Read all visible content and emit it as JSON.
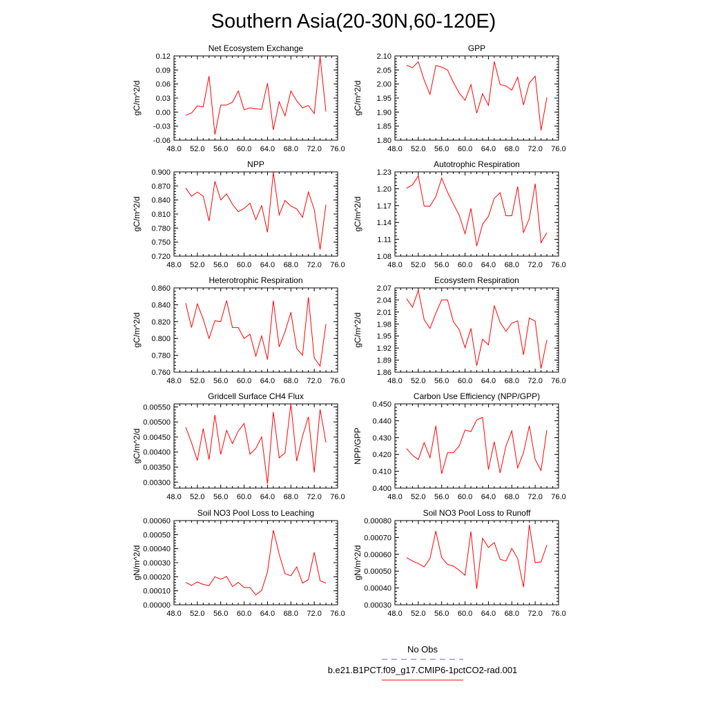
{
  "figure": {
    "title": "Southern Asia(20-30N,60-120E)",
    "legend": {
      "placement": "bottom-center",
      "entries": [
        {
          "label": "No Obs",
          "color": "#6666cc",
          "style": "dashed"
        },
        {
          "label": "b.e21.B1PCT.f09_g17.CMIP6-1pctCO2-rad.001",
          "color": "#ff0000",
          "style": "solid"
        }
      ]
    }
  },
  "chart_data": [
    {
      "type": "line",
      "title": "Net Ecosystem Exchange",
      "ylabel": "gC/m^2/d",
      "xlim": [
        48,
        76
      ],
      "xticks": [
        "48.0",
        "52.0",
        "56.0",
        "60.0",
        "64.0",
        "68.0",
        "72.0",
        "76.0"
      ],
      "ylim": [
        -0.06,
        0.12
      ],
      "yticks": [
        "-0.06",
        "-0.03",
        "0.00",
        "0.03",
        "0.06",
        "0.09",
        "0.12"
      ],
      "series": [
        {
          "color": "#ff0000",
          "x": [
            50,
            51,
            52,
            53,
            54,
            55,
            56,
            57,
            58,
            59,
            60,
            61,
            62,
            63,
            64,
            65,
            66,
            67,
            68,
            69,
            70,
            71,
            72,
            73,
            74
          ],
          "values": [
            -0.007,
            -0.002,
            0.013,
            0.011,
            0.077,
            -0.048,
            0.015,
            0.015,
            0.021,
            0.045,
            0.005,
            0.009,
            0.007,
            0.006,
            0.062,
            -0.038,
            0.022,
            -0.008,
            0.045,
            0.024,
            0.009,
            0.014,
            -0.003,
            0.118,
            0.001
          ]
        }
      ]
    },
    {
      "type": "line",
      "title": "GPP",
      "ylabel": "gC/m^2/d",
      "xlim": [
        48,
        76
      ],
      "xticks": [
        "48.0",
        "52.0",
        "56.0",
        "60.0",
        "64.0",
        "68.0",
        "72.0",
        "76.0"
      ],
      "ylim": [
        1.8,
        2.1
      ],
      "yticks": [
        "1.80",
        "1.85",
        "1.90",
        "1.95",
        "2.00",
        "2.05",
        "2.10"
      ],
      "series": [
        {
          "color": "#ff0000",
          "x": [
            50,
            51,
            52,
            53,
            54,
            55,
            56,
            57,
            58,
            59,
            60,
            61,
            62,
            63,
            64,
            65,
            66,
            67,
            68,
            69,
            70,
            71,
            72,
            73,
            74
          ],
          "values": [
            2.067,
            2.058,
            2.079,
            2.014,
            1.963,
            2.066,
            2.06,
            2.05,
            2.006,
            1.968,
            1.942,
            1.998,
            1.896,
            1.965,
            1.924,
            2.08,
            1.998,
            1.993,
            1.978,
            2.024,
            1.925,
            2.004,
            2.028,
            1.835,
            1.952
          ]
        }
      ]
    },
    {
      "type": "line",
      "title": "NPP",
      "ylabel": "gC/m^2/d",
      "xlim": [
        48,
        76
      ],
      "xticks": [
        "48.0",
        "52.0",
        "56.0",
        "60.0",
        "64.0",
        "68.0",
        "72.0",
        "76.0"
      ],
      "ylim": [
        0.72,
        0.9
      ],
      "yticks": [
        "0.720",
        "0.750",
        "0.780",
        "0.810",
        "0.840",
        "0.870",
        "0.900"
      ],
      "series": [
        {
          "color": "#ff0000",
          "x": [
            50,
            51,
            52,
            53,
            54,
            55,
            56,
            57,
            58,
            59,
            60,
            61,
            62,
            63,
            64,
            65,
            66,
            67,
            68,
            69,
            70,
            71,
            72,
            73,
            74
          ],
          "values": [
            0.866,
            0.848,
            0.857,
            0.848,
            0.795,
            0.88,
            0.84,
            0.853,
            0.831,
            0.815,
            0.822,
            0.833,
            0.798,
            0.828,
            0.771,
            0.899,
            0.808,
            0.839,
            0.827,
            0.821,
            0.803,
            0.857,
            0.82,
            0.734,
            0.83
          ]
        }
      ]
    },
    {
      "type": "line",
      "title": "Autotrophic Respiration",
      "ylabel": "gC/m^2/d",
      "xlim": [
        48,
        76
      ],
      "xticks": [
        "48.0",
        "52.0",
        "56.0",
        "60.0",
        "64.0",
        "68.0",
        "72.0",
        "76.0"
      ],
      "ylim": [
        1.08,
        1.23
      ],
      "yticks": [
        "1.08",
        "1.11",
        "1.14",
        "1.17",
        "1.20",
        "1.23"
      ],
      "series": [
        {
          "color": "#ff0000",
          "x": [
            50,
            51,
            52,
            53,
            54,
            55,
            56,
            57,
            58,
            59,
            60,
            61,
            62,
            63,
            64,
            65,
            66,
            67,
            68,
            69,
            70,
            71,
            72,
            73,
            74
          ],
          "values": [
            1.201,
            1.207,
            1.223,
            1.169,
            1.169,
            1.186,
            1.219,
            1.194,
            1.173,
            1.153,
            1.12,
            1.165,
            1.098,
            1.137,
            1.151,
            1.183,
            1.193,
            1.152,
            1.152,
            1.204,
            1.122,
            1.147,
            1.209,
            1.104,
            1.122
          ]
        }
      ]
    },
    {
      "type": "line",
      "title": "Heterotrophic Respiration",
      "ylabel": "gC/m^2/d",
      "xlim": [
        48,
        76
      ],
      "xticks": [
        "48.0",
        "52.0",
        "56.0",
        "60.0",
        "64.0",
        "68.0",
        "72.0",
        "76.0"
      ],
      "ylim": [
        0.76,
        0.86
      ],
      "yticks": [
        "0.760",
        "0.780",
        "0.800",
        "0.820",
        "0.840",
        "0.860"
      ],
      "series": [
        {
          "color": "#ff0000",
          "x": [
            50,
            51,
            52,
            53,
            54,
            55,
            56,
            57,
            58,
            59,
            60,
            61,
            62,
            63,
            64,
            65,
            66,
            67,
            68,
            69,
            70,
            71,
            72,
            73,
            74
          ],
          "values": [
            0.842,
            0.813,
            0.841,
            0.823,
            0.8,
            0.821,
            0.82,
            0.845,
            0.813,
            0.813,
            0.8,
            0.805,
            0.779,
            0.803,
            0.775,
            0.845,
            0.79,
            0.808,
            0.831,
            0.788,
            0.78,
            0.849,
            0.777,
            0.767,
            0.817
          ]
        }
      ]
    },
    {
      "type": "line",
      "title": "Ecosystem Respiration",
      "ylabel": "gC/m^2/d",
      "xlim": [
        48,
        76
      ],
      "xticks": [
        "48.0",
        "52.0",
        "56.0",
        "60.0",
        "64.0",
        "68.0",
        "72.0",
        "76.0"
      ],
      "ylim": [
        1.86,
        2.07
      ],
      "yticks": [
        "1.86",
        "1.89",
        "1.92",
        "1.95",
        "1.98",
        "2.01",
        "2.04",
        "2.07"
      ],
      "series": [
        {
          "color": "#ff0000",
          "x": [
            50,
            51,
            52,
            53,
            54,
            55,
            56,
            57,
            58,
            59,
            60,
            61,
            62,
            63,
            64,
            65,
            66,
            67,
            68,
            69,
            70,
            71,
            72,
            73,
            74
          ],
          "values": [
            2.043,
            2.022,
            2.064,
            1.991,
            1.969,
            2.007,
            2.04,
            2.04,
            1.986,
            1.966,
            1.921,
            1.969,
            1.876,
            1.942,
            1.928,
            2.026,
            1.984,
            1.962,
            1.982,
            1.988,
            1.903,
            1.995,
            1.987,
            1.869,
            1.94
          ]
        }
      ]
    },
    {
      "type": "line",
      "title": "Gridcell Surface CH4 Flux",
      "ylabel": "gC/m^2/d",
      "xlim": [
        48,
        76
      ],
      "xticks": [
        "48.0",
        "52.0",
        "56.0",
        "60.0",
        "64.0",
        "68.0",
        "72.0",
        "76.0"
      ],
      "ylim": [
        0.0028,
        0.0056
      ],
      "yticks": [
        "0.00300",
        "0.00350",
        "0.00400",
        "0.00450",
        "0.00500",
        "0.00550"
      ],
      "series": [
        {
          "color": "#ff0000",
          "x": [
            50,
            51,
            52,
            53,
            54,
            55,
            56,
            57,
            58,
            59,
            60,
            61,
            62,
            63,
            64,
            65,
            66,
            67,
            68,
            69,
            70,
            71,
            72,
            73,
            74
          ],
          "values": [
            0.00483,
            0.00431,
            0.00372,
            0.00478,
            0.00375,
            0.00523,
            0.00392,
            0.00472,
            0.00428,
            0.0047,
            0.00495,
            0.00393,
            0.00412,
            0.0045,
            0.00295,
            0.00533,
            0.00381,
            0.00397,
            0.0056,
            0.0037,
            0.00453,
            0.00517,
            0.00332,
            0.00542,
            0.00432
          ]
        }
      ]
    },
    {
      "type": "line",
      "title": "Carbon Use Efficiency (NPP/GPP)",
      "ylabel": "NPP/GPP",
      "xlim": [
        48,
        76
      ],
      "xticks": [
        "48.0",
        "52.0",
        "56.0",
        "60.0",
        "64.0",
        "68.0",
        "72.0",
        "76.0"
      ],
      "ylim": [
        0.4,
        0.45
      ],
      "yticks": [
        "0.400",
        "0.410",
        "0.420",
        "0.430",
        "0.440",
        "0.450"
      ],
      "series": [
        {
          "color": "#ff0000",
          "x": [
            50,
            51,
            52,
            53,
            54,
            55,
            56,
            57,
            58,
            59,
            60,
            61,
            62,
            63,
            64,
            65,
            66,
            67,
            68,
            69,
            70,
            71,
            72,
            73,
            74
          ],
          "values": [
            0.4235,
            0.4195,
            0.417,
            0.427,
            0.418,
            0.437,
            0.4085,
            0.421,
            0.421,
            0.425,
            0.4345,
            0.4335,
            0.4405,
            0.442,
            0.411,
            0.4275,
            0.409,
            0.425,
            0.434,
            0.412,
            0.421,
            0.437,
            0.417,
            0.4105,
            0.4345
          ]
        }
      ]
    },
    {
      "type": "line",
      "title": "Soil NO3 Pool Loss to Leaching",
      "ylabel": "gN/m^2/d",
      "xlim": [
        48,
        76
      ],
      "xticks": [
        "48.0",
        "52.0",
        "56.0",
        "60.0",
        "64.0",
        "68.0",
        "72.0",
        "76.0"
      ],
      "ylim": [
        0.0,
        0.0006
      ],
      "yticks": [
        "0.00000",
        "0.00010",
        "0.00020",
        "0.00030",
        "0.00040",
        "0.00050",
        "0.00060"
      ],
      "series": [
        {
          "color": "#ff0000",
          "x": [
            50,
            51,
            52,
            53,
            54,
            55,
            56,
            57,
            58,
            59,
            60,
            61,
            62,
            63,
            64,
            65,
            66,
            67,
            68,
            69,
            70,
            71,
            72,
            73,
            74
          ],
          "values": [
            0.00016,
            0.000138,
            0.000163,
            0.000145,
            0.000137,
            0.0002,
            0.000182,
            0.000202,
            0.00013,
            0.00016,
            0.000123,
            0.000123,
            7e-05,
            0.000103,
            0.000235,
            0.000532,
            0.00036,
            0.000222,
            0.000207,
            0.00027,
            0.000155,
            0.00018,
            0.000373,
            0.000172,
            0.000155
          ]
        }
      ]
    },
    {
      "type": "line",
      "title": "Soil NO3 Pool Loss to Runoff",
      "ylabel": "gN/m^2/d",
      "xlim": [
        48,
        76
      ],
      "xticks": [
        "48.0",
        "52.0",
        "56.0",
        "60.0",
        "64.0",
        "68.0",
        "72.0",
        "76.0"
      ],
      "ylim": [
        0.0003,
        0.0008
      ],
      "yticks": [
        "0.00030",
        "0.00040",
        "0.00050",
        "0.00060",
        "0.00070",
        "0.00080"
      ],
      "series": [
        {
          "color": "#ff0000",
          "x": [
            50,
            51,
            52,
            53,
            54,
            55,
            56,
            57,
            58,
            59,
            60,
            61,
            62,
            63,
            64,
            65,
            66,
            67,
            68,
            69,
            70,
            71,
            72,
            73,
            74
          ],
          "values": [
            0.00058,
            0.00056,
            0.000545,
            0.000525,
            0.000575,
            0.000738,
            0.00058,
            0.00054,
            0.00053,
            0.000505,
            0.000475,
            0.000735,
            0.000395,
            0.000695,
            0.00064,
            0.00067,
            0.00057,
            0.00056,
            0.000635,
            0.000575,
            0.000405,
            0.000775,
            0.00055,
            0.000555,
            0.000655
          ]
        }
      ]
    }
  ]
}
